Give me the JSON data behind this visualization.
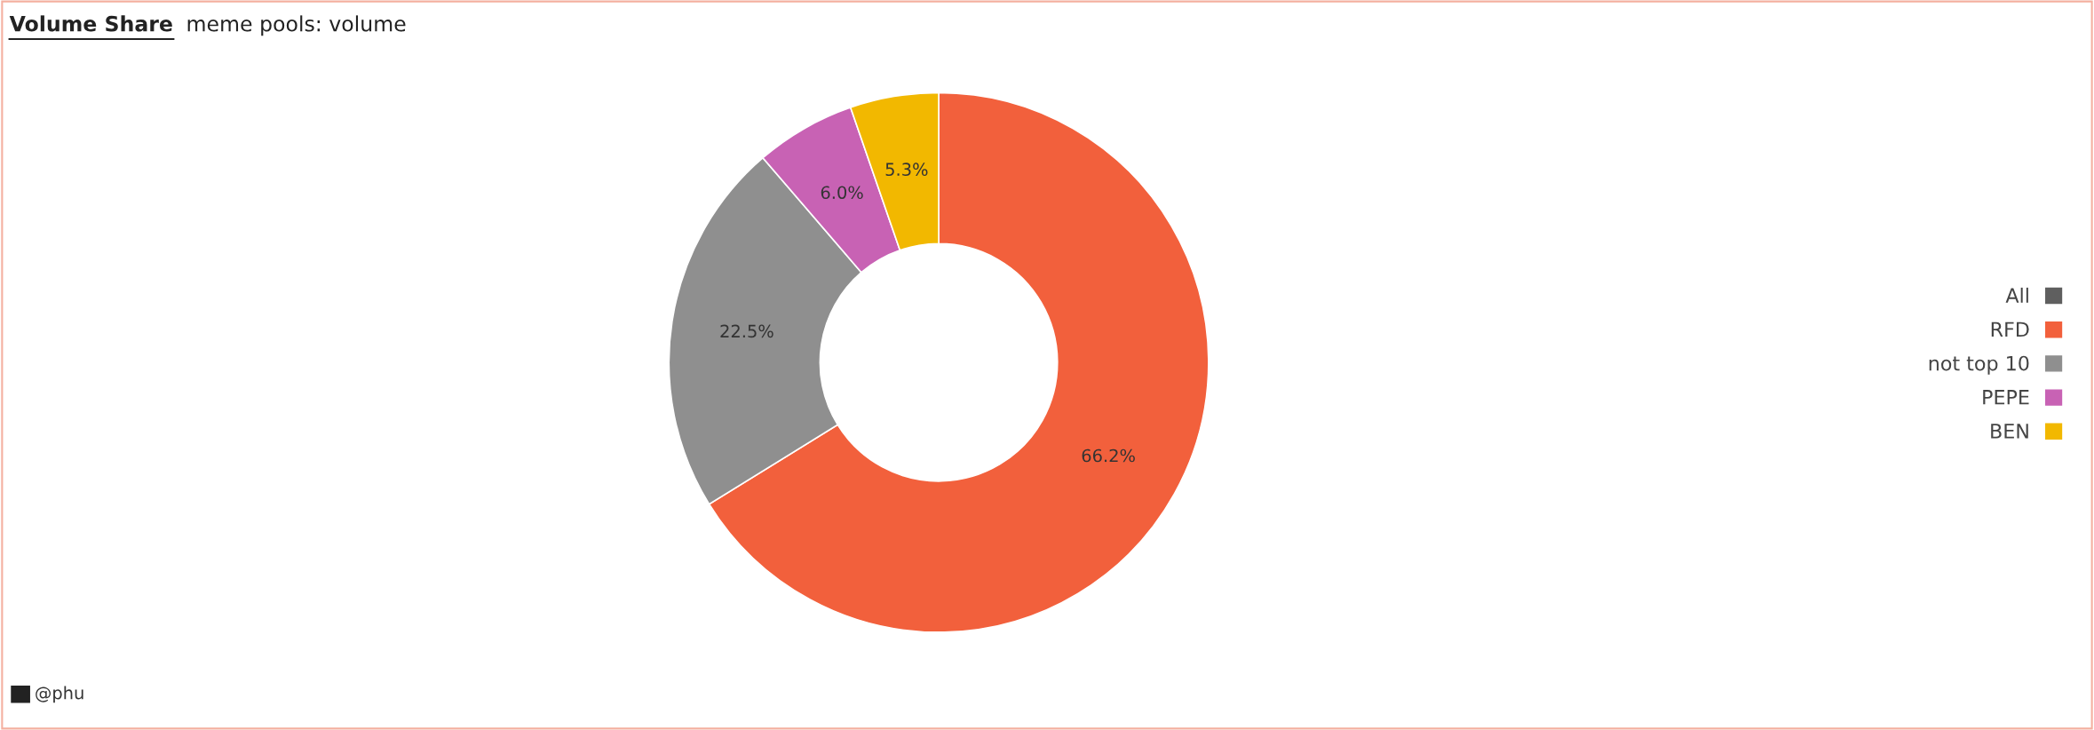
{
  "chart_data": {
    "type": "donut",
    "title": "Volume Share",
    "subtitle": "meme pools: volume",
    "categories": [
      "All",
      "RFD",
      "not top 10",
      "PEPE",
      "BEN"
    ],
    "values": [
      0,
      66.2,
      22.5,
      6.0,
      5.3
    ],
    "colors": [
      "#5f5f5f",
      "#f2603c",
      "#8f8f8f",
      "#c862b4",
      "#f2b800"
    ],
    "value_labels": [
      null,
      "66.2%",
      "22.5%",
      "6.0%",
      "5.3%"
    ],
    "legend": "right",
    "annotations": [
      "@phu"
    ]
  }
}
